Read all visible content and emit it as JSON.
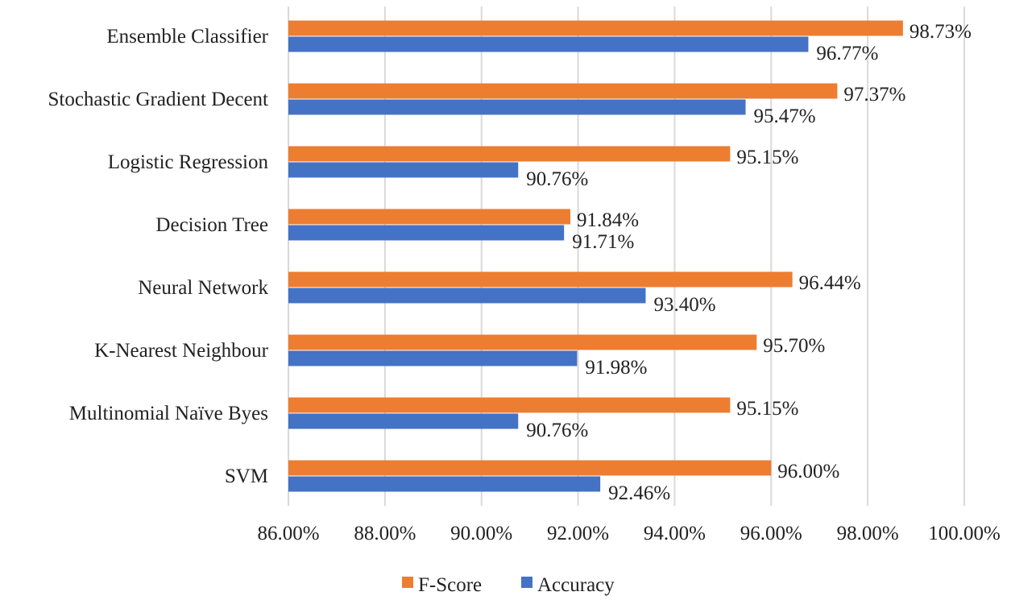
{
  "chart_data": {
    "type": "bar",
    "orientation": "horizontal",
    "categories": [
      "Ensemble Classifier",
      "Stochastic Gradient Decent",
      "Logistic Regression",
      "Decision Tree",
      "Neural Network",
      "K-Nearest Neighbour",
      "Multinomial Naïve Byes",
      "SVM"
    ],
    "series": [
      {
        "name": "F-Score",
        "color": "#ed7d31",
        "values": [
          98.73,
          97.37,
          95.15,
          91.84,
          96.44,
          95.7,
          95.15,
          96.0
        ],
        "labels": [
          "98.73%",
          "97.37%",
          "95.15%",
          "91.84%",
          "96.44%",
          "95.70%",
          "95.15%",
          "96.00%"
        ]
      },
      {
        "name": "Accuracy",
        "color": "#4472c4",
        "values": [
          96.77,
          95.47,
          90.76,
          91.71,
          93.4,
          91.98,
          90.76,
          92.46
        ],
        "labels": [
          "96.77%",
          "95.47%",
          "90.76%",
          "91.71%",
          "93.40%",
          "91.98%",
          "90.76%",
          "92.46%"
        ]
      }
    ],
    "xlim": [
      86,
      100
    ],
    "xticks": [
      86,
      88,
      90,
      92,
      94,
      96,
      98,
      100
    ],
    "xtick_labels": [
      "86.00%",
      "88.00%",
      "90.00%",
      "92.00%",
      "94.00%",
      "96.00%",
      "98.00%",
      "100.00%"
    ],
    "grid": true,
    "legend": "bottom",
    "title": "",
    "xlabel": "",
    "ylabel": ""
  }
}
